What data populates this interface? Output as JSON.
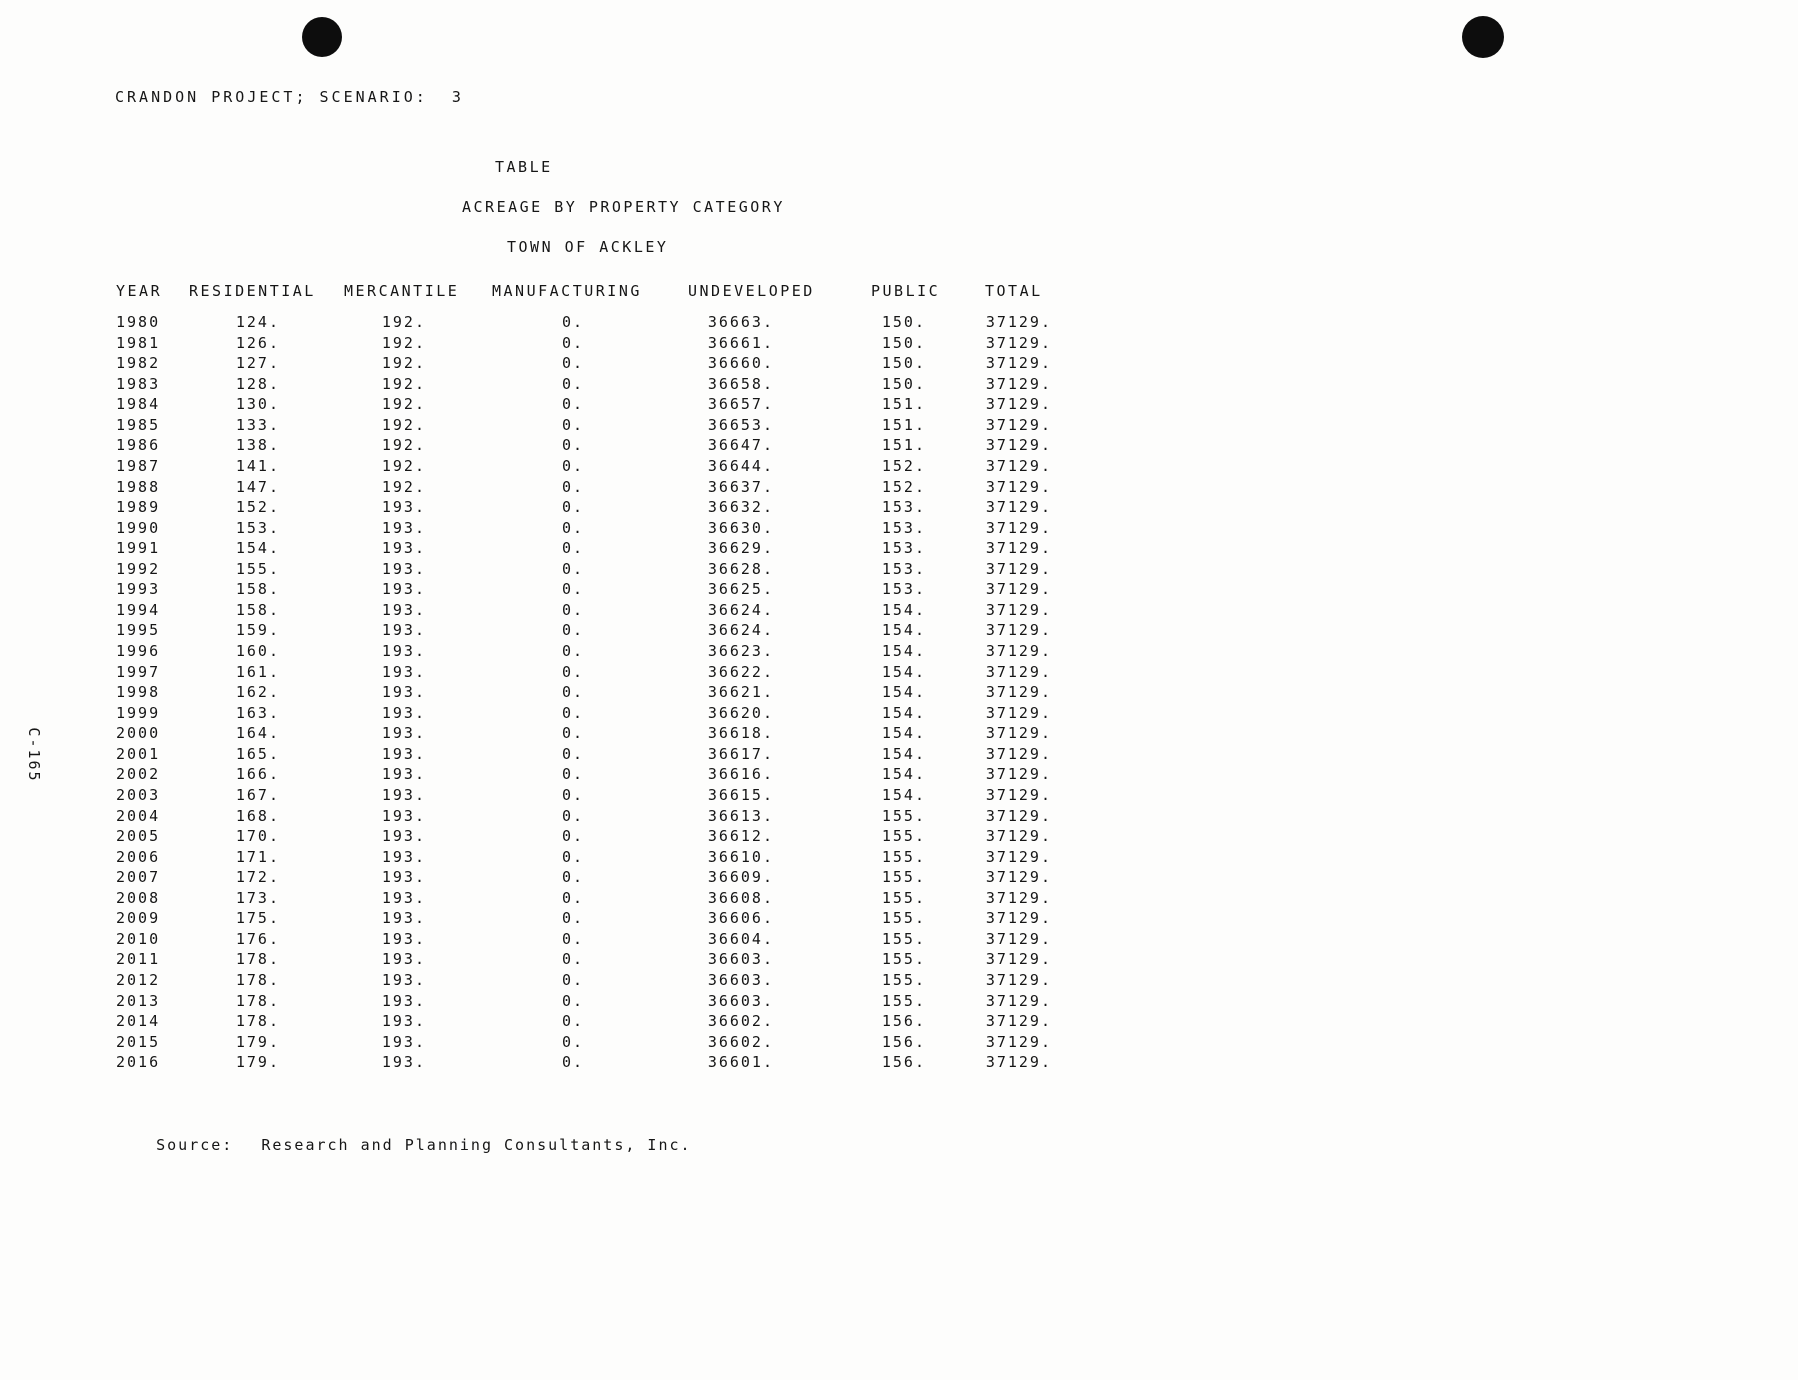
{
  "page": {
    "header_line": "CRANDON PROJECT; SCENARIO:  3",
    "table_label": "TABLE",
    "table_title": "ACREAGE BY PROPERTY CATEGORY",
    "table_subtitle": "TOWN OF ACKLEY",
    "side_label": "C-165",
    "source_label": "Source:",
    "source_text": "Research and Planning Consultants, Inc.",
    "ink_color": "#0d0d0d",
    "paper_color": "#fdfdfc"
  },
  "table": {
    "columns": [
      "YEAR",
      "RESIDENTIAL",
      "MERCANTILE",
      "MANUFACTURING",
      "UNDEVELOPED",
      "PUBLIC",
      "TOTAL"
    ],
    "rows": [
      [
        "1980",
        "124.",
        "192.",
        "0.",
        "36663.",
        "150.",
        "37129."
      ],
      [
        "1981",
        "126.",
        "192.",
        "0.",
        "36661.",
        "150.",
        "37129."
      ],
      [
        "1982",
        "127.",
        "192.",
        "0.",
        "36660.",
        "150.",
        "37129."
      ],
      [
        "1983",
        "128.",
        "192.",
        "0.",
        "36658.",
        "150.",
        "37129."
      ],
      [
        "1984",
        "130.",
        "192.",
        "0.",
        "36657.",
        "151.",
        "37129."
      ],
      [
        "1985",
        "133.",
        "192.",
        "0.",
        "36653.",
        "151.",
        "37129."
      ],
      [
        "1986",
        "138.",
        "192.",
        "0.",
        "36647.",
        "151.",
        "37129."
      ],
      [
        "1987",
        "141.",
        "192.",
        "0.",
        "36644.",
        "152.",
        "37129."
      ],
      [
        "1988",
        "147.",
        "192.",
        "0.",
        "36637.",
        "152.",
        "37129."
      ],
      [
        "1989",
        "152.",
        "193.",
        "0.",
        "36632.",
        "153.",
        "37129."
      ],
      [
        "1990",
        "153.",
        "193.",
        "0.",
        "36630.",
        "153.",
        "37129."
      ],
      [
        "1991",
        "154.",
        "193.",
        "0.",
        "36629.",
        "153.",
        "37129."
      ],
      [
        "1992",
        "155.",
        "193.",
        "0.",
        "36628.",
        "153.",
        "37129."
      ],
      [
        "1993",
        "158.",
        "193.",
        "0.",
        "36625.",
        "153.",
        "37129."
      ],
      [
        "1994",
        "158.",
        "193.",
        "0.",
        "36624.",
        "154.",
        "37129."
      ],
      [
        "1995",
        "159.",
        "193.",
        "0.",
        "36624.",
        "154.",
        "37129."
      ],
      [
        "1996",
        "160.",
        "193.",
        "0.",
        "36623.",
        "154.",
        "37129."
      ],
      [
        "1997",
        "161.",
        "193.",
        "0.",
        "36622.",
        "154.",
        "37129."
      ],
      [
        "1998",
        "162.",
        "193.",
        "0.",
        "36621.",
        "154.",
        "37129."
      ],
      [
        "1999",
        "163.",
        "193.",
        "0.",
        "36620.",
        "154.",
        "37129."
      ],
      [
        "2000",
        "164.",
        "193.",
        "0.",
        "36618.",
        "154.",
        "37129."
      ],
      [
        "2001",
        "165.",
        "193.",
        "0.",
        "36617.",
        "154.",
        "37129."
      ],
      [
        "2002",
        "166.",
        "193.",
        "0.",
        "36616.",
        "154.",
        "37129."
      ],
      [
        "2003",
        "167.",
        "193.",
        "0.",
        "36615.",
        "154.",
        "37129."
      ],
      [
        "2004",
        "168.",
        "193.",
        "0.",
        "36613.",
        "155.",
        "37129."
      ],
      [
        "2005",
        "170.",
        "193.",
        "0.",
        "36612.",
        "155.",
        "37129."
      ],
      [
        "2006",
        "171.",
        "193.",
        "0.",
        "36610.",
        "155.",
        "37129."
      ],
      [
        "2007",
        "172.",
        "193.",
        "0.",
        "36609.",
        "155.",
        "37129."
      ],
      [
        "2008",
        "173.",
        "193.",
        "0.",
        "36608.",
        "155.",
        "37129."
      ],
      [
        "2009",
        "175.",
        "193.",
        "0.",
        "36606.",
        "155.",
        "37129."
      ],
      [
        "2010",
        "176.",
        "193.",
        "0.",
        "36604.",
        "155.",
        "37129."
      ],
      [
        "2011",
        "178.",
        "193.",
        "0.",
        "36603.",
        "155.",
        "37129."
      ],
      [
        "2012",
        "178.",
        "193.",
        "0.",
        "36603.",
        "155.",
        "37129."
      ],
      [
        "2013",
        "178.",
        "193.",
        "0.",
        "36603.",
        "155.",
        "37129."
      ],
      [
        "2014",
        "178.",
        "193.",
        "0.",
        "36602.",
        "156.",
        "37129."
      ],
      [
        "2015",
        "179.",
        "193.",
        "0.",
        "36602.",
        "156.",
        "37129."
      ],
      [
        "2016",
        "179.",
        "193.",
        "0.",
        "36601.",
        "156.",
        "37129."
      ]
    ]
  }
}
